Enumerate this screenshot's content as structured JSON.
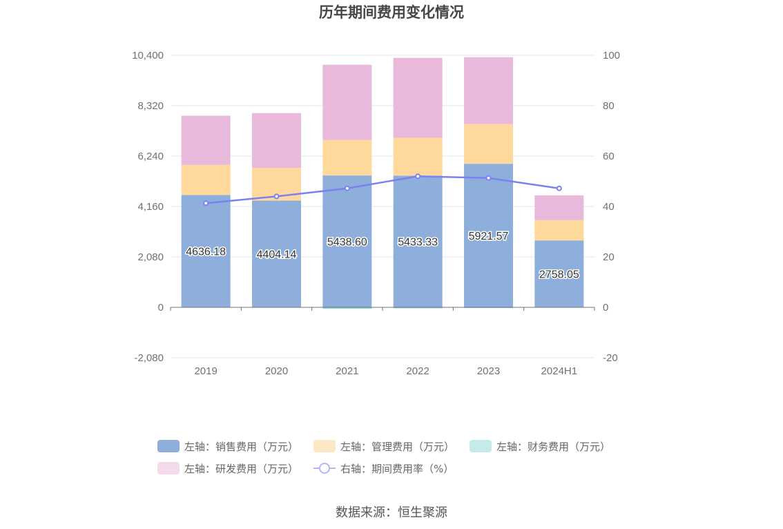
{
  "chart_data": {
    "type": "bar",
    "title": "历年期间费用变化情况",
    "categories": [
      "2019",
      "2020",
      "2021",
      "2022",
      "2023",
      "2024H1"
    ],
    "left_axis": {
      "ylim": [
        -2080,
        10400
      ],
      "ticks": [
        "10,400",
        "8,320",
        "6,240",
        "4,160",
        "2,080",
        "0",
        "-2,080"
      ],
      "tick_values": [
        10400,
        8320,
        6240,
        4160,
        2080,
        0,
        -2080
      ]
    },
    "right_axis": {
      "ylim": [
        -20,
        100
      ],
      "ticks": [
        "100",
        "80",
        "60",
        "40",
        "20",
        "0",
        "-20"
      ],
      "tick_values": [
        100,
        80,
        60,
        40,
        20,
        0,
        -20
      ]
    },
    "stacked": true,
    "series": [
      {
        "name": "左轴：销售费用（万元）",
        "axis": "left",
        "type": "bar",
        "color": "#8eaedb",
        "values": [
          4636.18,
          4404.14,
          5438.6,
          5433.33,
          5921.57,
          2758.05
        ],
        "labels": [
          "4636.18",
          "4404.14",
          "5438.60",
          "5433.33",
          "5921.57",
          "2758.05"
        ]
      },
      {
        "name": "左轴：管理费用（万元）",
        "axis": "left",
        "type": "bar",
        "color": "#fed99b",
        "values": [
          1240,
          1350,
          1470,
          1560,
          1640,
          840
        ]
      },
      {
        "name": "左轴：财务费用（万元）",
        "axis": "left",
        "type": "bar",
        "color": "#8fd8d8",
        "values": [
          -10,
          -15,
          -60,
          -40,
          -30,
          -10
        ]
      },
      {
        "name": "左轴：研发费用（万元）",
        "axis": "left",
        "type": "bar",
        "color": "#e8b9da",
        "values": [
          2030,
          2260,
          3100,
          3300,
          2760,
          1020
        ]
      },
      {
        "name": "右轴：期间费用率（%）",
        "axis": "right",
        "type": "line",
        "color": "#7b80f2",
        "values": [
          41.3,
          44.0,
          47.2,
          52.0,
          51.3,
          47.2
        ]
      }
    ],
    "grid": true,
    "legend_position": "bottom"
  },
  "source": "数据来源：恒生聚源"
}
